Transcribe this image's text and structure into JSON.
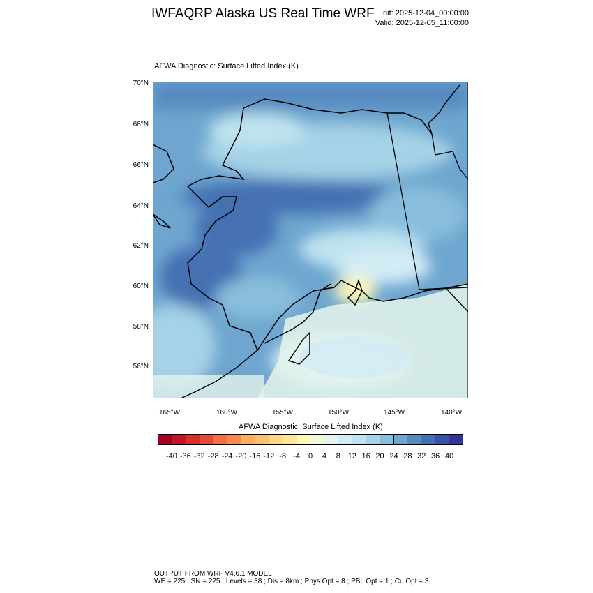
{
  "header": {
    "title": "IWFAQRP Alaska US Real Time WRF",
    "init": "Init: 2025-12-04_00:00:00",
    "valid": "Valid: 2025-12-05_11:00:00"
  },
  "plot": {
    "subtitle": "AFWA Diagnostic: Surface Lifted Index   (K)",
    "lat_labels": [
      "70°N",
      "68°N",
      "66°N",
      "64°N",
      "62°N",
      "60°N",
      "58°N",
      "56°N"
    ],
    "lon_labels": [
      "165°W",
      "160°W",
      "155°W",
      "150°W",
      "145°W",
      "140°W"
    ]
  },
  "colorbar": {
    "title": "AFWA Diagnostic: Surface Lifted Index  (K)",
    "colors": [
      "#a50026",
      "#bd1726",
      "#d73027",
      "#e34933",
      "#f46d43",
      "#f88b51",
      "#fdae61",
      "#fdbf71",
      "#fed887",
      "#fee79a",
      "#fdf8b6",
      "#f1f9d8",
      "#e5f4ec",
      "#d3ecf4",
      "#bee3ef",
      "#a5d2e6",
      "#88bedb",
      "#6ea6cf",
      "#578bc0",
      "#4471b3",
      "#3953a4",
      "#313695"
    ],
    "labels": [
      "-40",
      "-36",
      "-32",
      "-28",
      "-24",
      "-20",
      "-16",
      "-12",
      "-8",
      "-4",
      "0",
      "4",
      "8",
      "12",
      "16",
      "20",
      "24",
      "28",
      "32",
      "36",
      "40"
    ]
  },
  "footer": {
    "line1": "OUTPUT FROM WRF V4.6.1 MODEL",
    "line2": "WE = 225 ; SN = 225 ; Levels = 38 ; Dis = 8km ; Phys Opt = 8 ; PBL Opt = 1 ; Cu Opt = 3"
  }
}
